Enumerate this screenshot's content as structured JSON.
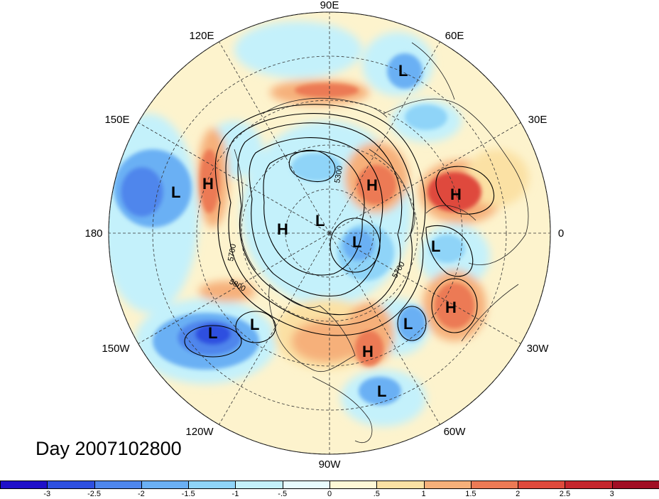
{
  "map": {
    "longitude_labels": [
      "90E",
      "60E",
      "30E",
      "0",
      "30W",
      "60W",
      "90W",
      "120W",
      "150W",
      "180",
      "150E",
      "120E"
    ],
    "date_label": "Day 2007102800",
    "contour_labels": [
      "5300",
      "5700",
      "5800",
      "5700"
    ],
    "pressure_centers": [
      {
        "type": "L"
      },
      {
        "type": "L"
      },
      {
        "type": "H"
      },
      {
        "type": "H"
      },
      {
        "type": "H"
      },
      {
        "type": "L"
      },
      {
        "type": "L"
      },
      {
        "type": "H"
      },
      {
        "type": "L"
      },
      {
        "type": "L"
      },
      {
        "type": "H"
      },
      {
        "type": "L"
      },
      {
        "type": "L"
      },
      {
        "type": "H"
      },
      {
        "type": "L"
      },
      {
        "type": "L"
      }
    ]
  },
  "colorbar": {
    "tick_labels": [
      "-3",
      "-2.5",
      "-2",
      "-1.5",
      "-1",
      "-.5",
      "0",
      ".5",
      "1",
      "1.5",
      "2",
      "2.5",
      "3"
    ],
    "colors": [
      "#1f10c9",
      "#2f50e0",
      "#4f86ec",
      "#6bb0f4",
      "#8fd4f8",
      "#c4f1fb",
      "#e8fbfd",
      "#fef8d6",
      "#fbe1a4",
      "#f6b07a",
      "#ec7a55",
      "#df4a3c",
      "#c5262d",
      "#a10e24"
    ]
  }
}
